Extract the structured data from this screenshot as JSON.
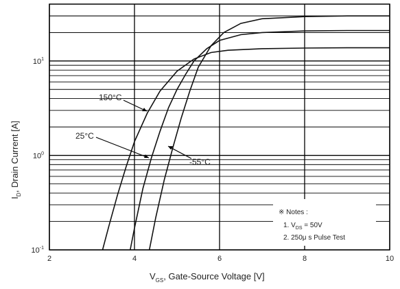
{
  "chart_data": {
    "type": "line",
    "x_axis": {
      "title": "V",
      "title_sub": "GS",
      "title_rest": ", Gate-Source Voltage [V]",
      "range": [
        2,
        10
      ],
      "tick_values": [
        2,
        4,
        6,
        8,
        10
      ],
      "tick_labels": [
        "2",
        "4",
        "6",
        "8",
        "10"
      ]
    },
    "y_axis": {
      "title": "I",
      "title_sub": "D",
      "title_rest": ", Drain Current [A]",
      "scale": "log",
      "range": [
        0.1,
        40
      ],
      "tick_labels": [
        {
          "value": 10,
          "base": "10",
          "exp": "1"
        },
        {
          "value": 1,
          "base": "10",
          "exp": "0"
        },
        {
          "value": 0.1,
          "base": "10",
          "exp": "-1"
        }
      ]
    },
    "grid": true,
    "series": [
      {
        "name": "150°C",
        "x": [
          3.25,
          3.4,
          3.6,
          3.8,
          4.0,
          4.3,
          4.6,
          5.0,
          5.4,
          5.8,
          6.2,
          7.0,
          8.0,
          9.0,
          10.0
        ],
        "y": [
          0.1,
          0.18,
          0.38,
          0.75,
          1.4,
          2.8,
          4.8,
          7.8,
          10.5,
          12.3,
          13.0,
          13.5,
          13.7,
          13.8,
          13.8
        ]
      },
      {
        "name": "25°C",
        "x": [
          3.9,
          4.0,
          4.2,
          4.4,
          4.6,
          4.8,
          5.0,
          5.2,
          5.4,
          5.7,
          6.0,
          6.5,
          7.0,
          8.0,
          9.0,
          10.0
        ],
        "y": [
          0.1,
          0.17,
          0.45,
          0.95,
          1.8,
          3.2,
          5.0,
          7.2,
          10.0,
          13.5,
          16.5,
          19.0,
          20.0,
          20.8,
          21.0,
          21.0
        ]
      },
      {
        "name": "-55°C",
        "x": [
          4.35,
          4.5,
          4.7,
          4.9,
          5.1,
          5.3,
          5.5,
          5.8,
          6.1,
          6.5,
          7.0,
          8.0,
          9.0,
          10.0
        ],
        "y": [
          0.1,
          0.22,
          0.55,
          1.2,
          2.5,
          4.8,
          8.6,
          14.5,
          20.0,
          25.0,
          28.0,
          29.5,
          30.0,
          30.0
        ]
      }
    ],
    "annotations": [
      {
        "text": "150°C",
        "series": "150°C"
      },
      {
        "text": "25°C",
        "series": "25°C"
      },
      {
        "text": "-55°C",
        "series": "-55°C"
      }
    ],
    "notes": {
      "title": "※ Notes :",
      "line1_a": "1. V",
      "line1_sub": "DS",
      "line1_b": " = 50V",
      "line2": "2. 250μ s Pulse Test"
    }
  }
}
